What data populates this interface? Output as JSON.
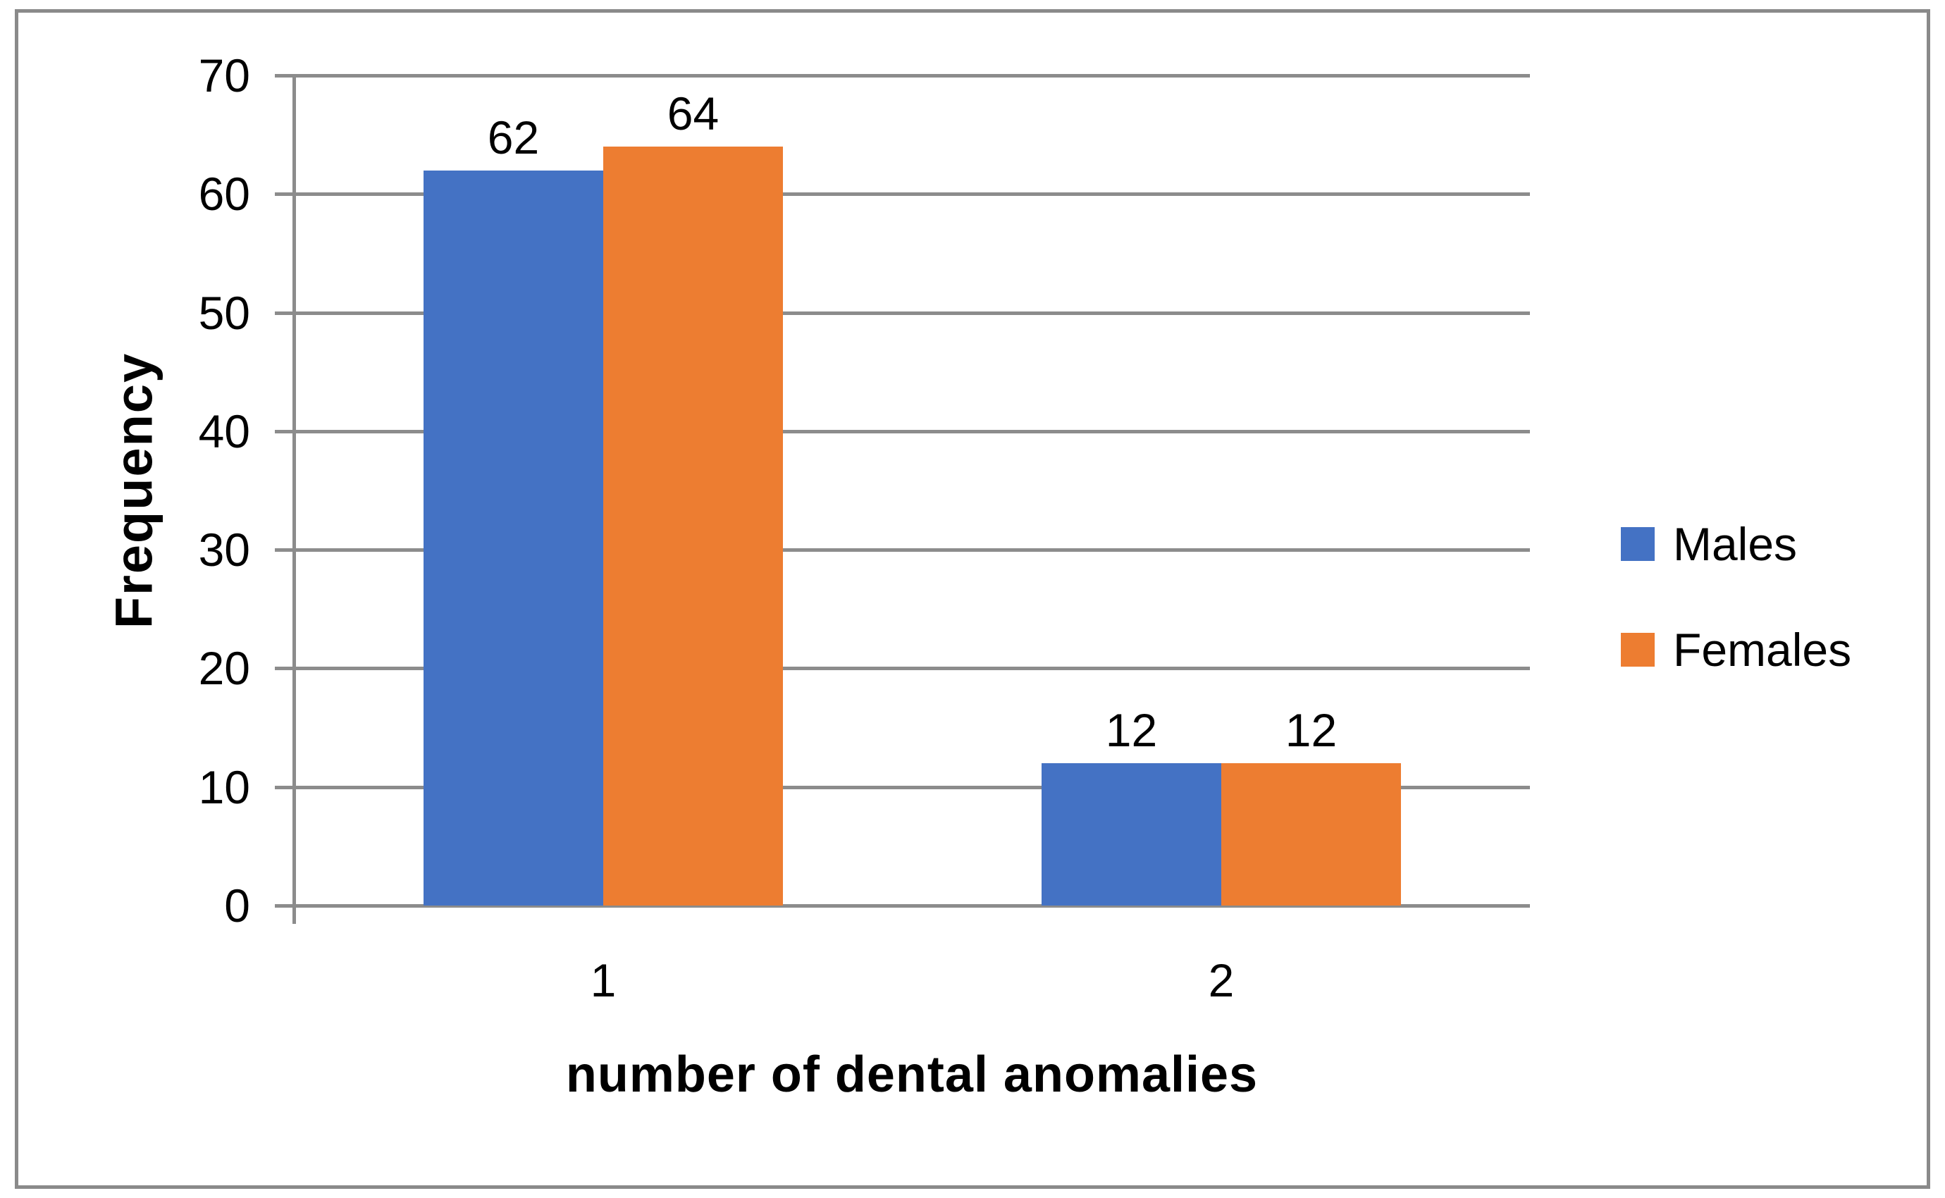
{
  "figure": {
    "background_color": "#ffffff",
    "border_color": "#8a8a8a"
  },
  "chart_data": {
    "type": "bar",
    "title": "",
    "categories": [
      "1",
      "2"
    ],
    "series": [
      {
        "name": "Males",
        "values": [
          62,
          12
        ],
        "color": "#4472C4"
      },
      {
        "name": "Females",
        "values": [
          64,
          12
        ],
        "color": "#ED7D31"
      }
    ],
    "data_labels": [
      [
        "62",
        "12"
      ],
      [
        "64",
        "12"
      ]
    ],
    "xlabel": "number of dental anomalies",
    "ylabel": "Frequency",
    "ylim": [
      0,
      70
    ],
    "yticks": [
      0,
      10,
      20,
      30,
      40,
      50,
      60,
      70
    ],
    "grid": "horizontal",
    "gridline_color": "#8c8c8c",
    "axis_color": "#8c8c8c",
    "text_color": "#000000",
    "legend_position": "right",
    "legend_entries": [
      "Males",
      "Females"
    ]
  }
}
